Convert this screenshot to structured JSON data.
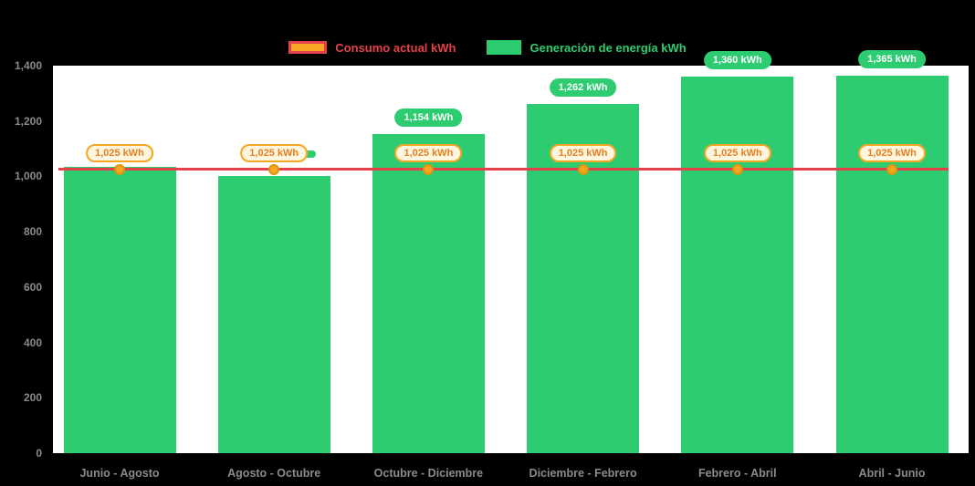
{
  "legend": {
    "consumption_label": "Consumo actual kWh",
    "generation_label": "Generación de energía kWh"
  },
  "colors": {
    "generation_green": "#2ecc71",
    "consumption_red": "#e6404a",
    "marker_orange": "#f5a623",
    "axis_text_gray": "#8a8a8a",
    "plot_background": "#ffffff",
    "page_background": "#000000"
  },
  "chart_data": {
    "type": "bar",
    "title": "",
    "categories": [
      "Junio - Agosto",
      "Agosto - Octubre",
      "Octubre - Diciembre",
      "Diciembre - Febrero",
      "Febrero - Abril",
      "Abril - Junio"
    ],
    "y_tick_labels": [
      "0",
      "200",
      "400",
      "600",
      "800",
      "1,000",
      "1,200",
      "1,400"
    ],
    "y_tick_values": [
      0,
      200,
      400,
      600,
      800,
      1000,
      1200,
      1400
    ],
    "ylim": [
      0,
      1400
    ],
    "grid": false,
    "legend_position": "top",
    "series": [
      {
        "name": "Generación de energía kWh",
        "type": "bar",
        "color": "#2ecc71",
        "values": [
          1034,
          1003,
          1154,
          1262,
          1360,
          1365
        ],
        "data_labels": [
          "",
          "",
          "1,154 kWh",
          "1,262 kWh",
          "1,360 kWh",
          "1,365 kWh"
        ],
        "label_visible": [
          false,
          true,
          true,
          true,
          true,
          true
        ]
      },
      {
        "name": "Consumo actual kWh",
        "type": "line",
        "color": "#e6404a",
        "values": [
          1025,
          1025,
          1025,
          1025,
          1025,
          1025
        ],
        "data_labels": [
          "1,025 kWh",
          "1,025 kWh",
          "1,025 kWh",
          "1,025 kWh",
          "1,025 kWh",
          "1,025 kWh"
        ]
      }
    ]
  }
}
